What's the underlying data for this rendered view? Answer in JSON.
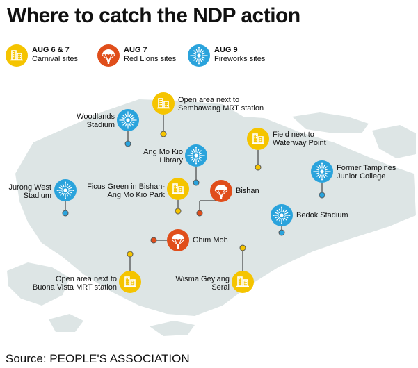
{
  "title": "Where to catch the NDP action",
  "colors": {
    "carnival": "#f5c400",
    "red_lions": "#e04e1b",
    "fireworks": "#2aa3dc",
    "land": "#dde5e5",
    "text": "#111111"
  },
  "legend": [
    {
      "date": "AUG 6 & 7",
      "label": "Carnival sites",
      "icon": "building-icon"
    },
    {
      "date": "AUG 7",
      "label": "Red Lions sites",
      "icon": "parachute-icon"
    },
    {
      "date": "AUG 9",
      "label": "Fireworks sites",
      "icon": "firework-icon"
    }
  ],
  "sites": {
    "sembawang": {
      "line1": "Open area next to",
      "line2": "Sembawang MRT station"
    },
    "woodlands": {
      "line1": "Woodlands",
      "line2": "Stadium"
    },
    "waterway": {
      "line1": "Field next to",
      "line2": "Waterway Point"
    },
    "amk_library": {
      "line1": "Ang Mo Kio",
      "line2": "Library"
    },
    "tampines": {
      "line1": "Former Tampines",
      "line2": "Junior College"
    },
    "jurong": {
      "line1": "Jurong West",
      "line2": "Stadium"
    },
    "ficus": {
      "line1": "Ficus Green in Bishan-",
      "line2": "Ang Mo Kio Park"
    },
    "bishan": {
      "line1": "Bishan"
    },
    "bedok": {
      "line1": "Bedok Stadium"
    },
    "ghim_moh": {
      "line1": "Ghim Moh"
    },
    "buona_vista": {
      "line1": "Open area next to",
      "line2": "Buona Vista MRT station"
    },
    "geylang": {
      "line1": "Wisma Geylang",
      "line2": "Serai"
    }
  },
  "source": "Source: PEOPLE'S ASSOCIATION"
}
